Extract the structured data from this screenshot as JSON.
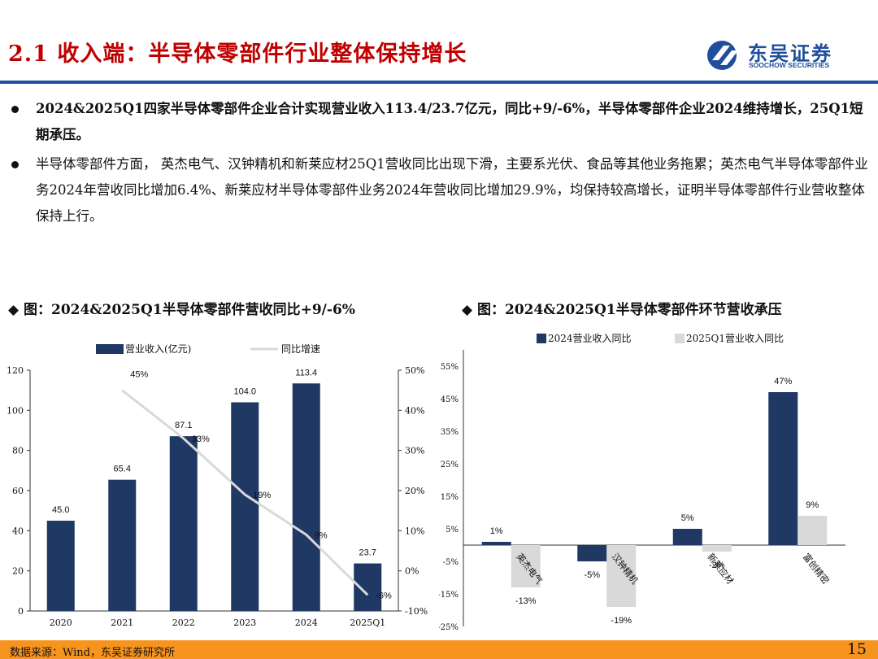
{
  "header": {
    "title": "2.1 收入端：半导体零部件行业整体保持增长",
    "logo_cn": "东吴证券",
    "logo_en": "SOOCHOW SECURITIES"
  },
  "bullets": [
    "2024&2025Q1四家半导体零部件企业合计实现营业收入113.4/23.7亿元，同比+9/-6%，半导体零部件企业2024维持增长，25Q1短期承压。",
    "半导体零部件方面， 英杰电气、汉钟精机和新莱应材25Q1营收同比出现下滑，主要系光伏、食品等其他业务拖累；英杰电气半导体零部件业务2024年营收同比增加6.4%、新莱应材半导体零部件业务2024年营收同比增加29.9%，均保持较高增长，证明半导体零部件行业营收整体保持上行。"
  ],
  "chart_titles": [
    "◆ 图：2024&2025Q1半导体零部件营收同比+9/-6%",
    "◆ 图：2024&2025Q1半导体零部件环节营收承压"
  ],
  "chart_data": [
    {
      "type": "bar",
      "categories": [
        "2020",
        "2021",
        "2022",
        "2023",
        "2024",
        "2025Q1"
      ],
      "series": [
        {
          "name": "营业收入(亿元)",
          "values": [
            45.0,
            65.4,
            87.1,
            104.0,
            113.4,
            23.7
          ],
          "labels": [
            "45.0",
            "65.4",
            "87.1",
            "104.0",
            "113.4",
            "23.7"
          ],
          "color": "#1f3864",
          "axis": "left"
        },
        {
          "name": "同比增速",
          "type": "line",
          "values": [
            null,
            45,
            33,
            19,
            9,
            -6
          ],
          "labels": [
            "",
            "45%",
            "33%",
            "19%",
            "9%",
            "-6%"
          ],
          "color": "#d9d9d9",
          "axis": "right"
        }
      ],
      "ylim": [
        0,
        120
      ],
      "yticks": [
        "0",
        "20",
        "40",
        "60",
        "80",
        "100",
        "120"
      ],
      "y2lim": [
        -10,
        50
      ],
      "y2ticks": [
        "-10%",
        "0%",
        "10%",
        "20%",
        "30%",
        "40%",
        "50%"
      ],
      "legend": "top"
    },
    {
      "type": "bar",
      "categories": [
        "英杰电气",
        "汉钟精机",
        "新莱应材",
        "富创精密"
      ],
      "series": [
        {
          "name": "2024营业收入同比",
          "values": [
            1,
            -5,
            5,
            47
          ],
          "labels": [
            "1%",
            "-5%",
            "5%",
            "47%"
          ],
          "color": "#1f3864"
        },
        {
          "name": "2025Q1营业收入同比",
          "values": [
            -13,
            -19,
            -2,
            9
          ],
          "labels": [
            "-13%",
            "-19%",
            "-2%",
            "9%"
          ],
          "color": "#d9d9d9"
        }
      ],
      "ylim": [
        -25,
        55
      ],
      "yticks": [
        "-25%",
        "-15%",
        "-5%",
        "5%",
        "15%",
        "25%",
        "35%",
        "45%",
        "55%"
      ],
      "legend": "top"
    }
  ],
  "footer": {
    "source": "数据来源：Wind，东吴证券研究所",
    "page": "15"
  }
}
